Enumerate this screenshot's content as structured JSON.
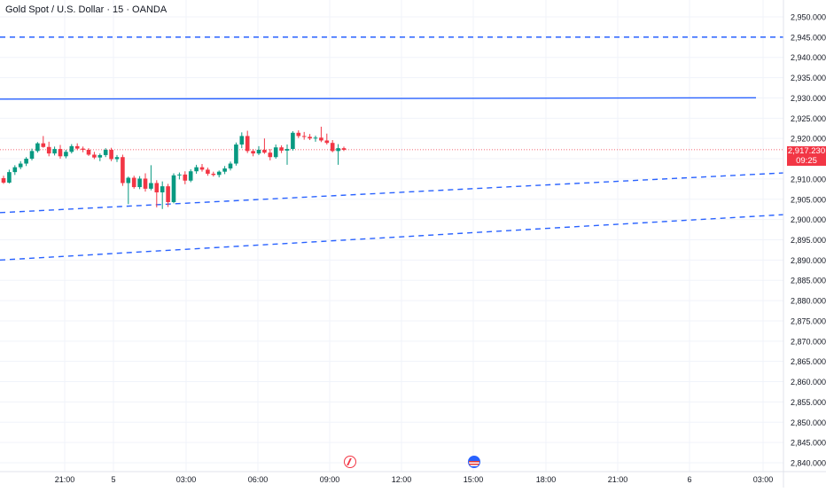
{
  "header": {
    "title": "Gold Spot / U.S. Dollar · 15 · OANDA"
  },
  "price_badge": {
    "price": "2,917.230",
    "countdown": "09:25",
    "color": "#f23645"
  },
  "events": [
    {
      "icon": "flash-icon",
      "x_label": "10:00"
    },
    {
      "icon": "us-flag-icon",
      "x_label": "15:00"
    }
  ],
  "colors": {
    "up": "#089981",
    "down": "#f23645",
    "line": "#2962ff",
    "grid": "#f0f3fa",
    "axis_text": "#131722"
  },
  "chart_data": {
    "type": "candlestick",
    "title": "Gold Spot / U.S. Dollar · 15 · OANDA",
    "x_tick_labels": [
      "21:00",
      "5",
      "03:00",
      "06:00",
      "09:00",
      "12:00",
      "15:00",
      "18:00",
      "21:00",
      "6",
      "03:00"
    ],
    "y_tick_labels": [
      "2,950.000",
      "2,945.000",
      "2,940.000",
      "2,935.000",
      "2,930.000",
      "2,925.000",
      "2,920.000",
      "2,915.000",
      "2,910.000",
      "2,905.000",
      "2,900.000",
      "2,895.000",
      "2,890.000",
      "2,885.000",
      "2,880.000",
      "2,875.000",
      "2,870.000",
      "2,865.000",
      "2,860.000",
      "2,855.000",
      "2,850.000",
      "2,845.000",
      "2,840.000"
    ],
    "ylim": [
      2838,
      2952
    ],
    "last_price": 2917.23,
    "candles_ohlc": [
      [
        2910.2,
        2910.8,
        2908.8,
        2909.1
      ],
      [
        2909.1,
        2912.3,
        2908.9,
        2911.7
      ],
      [
        2911.7,
        2913.4,
        2911.0,
        2912.9
      ],
      [
        2912.9,
        2914.4,
        2912.4,
        2913.8
      ],
      [
        2913.8,
        2915.4,
        2913.2,
        2915.0
      ],
      [
        2915.0,
        2917.5,
        2914.6,
        2916.9
      ],
      [
        2916.9,
        2919.1,
        2916.5,
        2918.8
      ],
      [
        2918.8,
        2920.6,
        2917.7,
        2917.9
      ],
      [
        2917.9,
        2919.2,
        2915.6,
        2916.3
      ],
      [
        2916.3,
        2918.0,
        2915.8,
        2917.4
      ],
      [
        2917.4,
        2918.4,
        2915.0,
        2915.6
      ],
      [
        2915.6,
        2917.2,
        2915.1,
        2916.7
      ],
      [
        2916.7,
        2918.6,
        2916.3,
        2918.1
      ],
      [
        2918.1,
        2918.8,
        2917.1,
        2917.5
      ],
      [
        2917.5,
        2918.0,
        2916.6,
        2917.2
      ],
      [
        2917.2,
        2917.6,
        2915.7,
        2916.0
      ],
      [
        2916.0,
        2916.7,
        2914.9,
        2915.3
      ],
      [
        2915.3,
        2916.3,
        2914.4,
        2915.9
      ],
      [
        2915.9,
        2917.6,
        2915.4,
        2917.2
      ],
      [
        2917.2,
        2917.7,
        2914.4,
        2914.9
      ],
      [
        2914.9,
        2915.9,
        2914.2,
        2915.4
      ],
      [
        2915.4,
        2916.0,
        2908.3,
        2909.0
      ],
      [
        2909.0,
        2910.6,
        2903.8,
        2910.3
      ],
      [
        2910.3,
        2910.8,
        2907.6,
        2908.0
      ],
      [
        2908.0,
        2910.7,
        2907.5,
        2910.1
      ],
      [
        2910.1,
        2911.4,
        2906.9,
        2907.6
      ],
      [
        2907.6,
        2913.4,
        2907.2,
        2909.0
      ],
      [
        2909.0,
        2909.7,
        2903.0,
        2906.7
      ],
      [
        2906.7,
        2909.4,
        2902.6,
        2908.2
      ],
      [
        2908.2,
        2908.8,
        2903.1,
        2904.3
      ],
      [
        2904.3,
        2911.4,
        2904.0,
        2910.9
      ],
      [
        2910.9,
        2911.6,
        2909.9,
        2911.1
      ],
      [
        2911.1,
        2911.9,
        2908.7,
        2909.6
      ],
      [
        2909.6,
        2912.4,
        2909.2,
        2911.9
      ],
      [
        2911.9,
        2913.5,
        2911.3,
        2912.9
      ],
      [
        2912.9,
        2913.7,
        2911.8,
        2912.3
      ],
      [
        2912.3,
        2912.8,
        2910.8,
        2911.3
      ],
      [
        2911.3,
        2911.8,
        2910.6,
        2911.0
      ],
      [
        2911.0,
        2912.1,
        2910.4,
        2911.8
      ],
      [
        2911.8,
        2913.2,
        2911.2,
        2912.6
      ],
      [
        2912.6,
        2914.3,
        2912.1,
        2913.8
      ],
      [
        2913.8,
        2919.0,
        2913.3,
        2918.5
      ],
      [
        2918.5,
        2921.5,
        2917.6,
        2920.6
      ],
      [
        2920.6,
        2921.9,
        2916.4,
        2916.9
      ],
      [
        2916.9,
        2917.4,
        2915.6,
        2916.3
      ],
      [
        2916.3,
        2918.1,
        2915.9,
        2917.2
      ],
      [
        2917.2,
        2920.0,
        2916.2,
        2916.5
      ],
      [
        2916.5,
        2917.4,
        2914.6,
        2915.4
      ],
      [
        2915.4,
        2918.5,
        2915.0,
        2917.8
      ],
      [
        2917.8,
        2918.3,
        2916.4,
        2917.0
      ],
      [
        2917.0,
        2918.5,
        2913.5,
        2917.4
      ],
      [
        2917.4,
        2921.8,
        2917.0,
        2921.4
      ],
      [
        2921.4,
        2922.0,
        2920.1,
        2920.6
      ],
      [
        2920.6,
        2921.6,
        2919.7,
        2920.4
      ],
      [
        2920.4,
        2921.1,
        2919.6,
        2920.0
      ],
      [
        2920.0,
        2920.7,
        2919.2,
        2920.2
      ],
      [
        2920.2,
        2922.9,
        2919.1,
        2919.5
      ],
      [
        2919.5,
        2921.2,
        2918.5,
        2918.9
      ],
      [
        2918.9,
        2919.6,
        2916.6,
        2916.9
      ],
      [
        2916.9,
        2918.6,
        2913.5,
        2917.6
      ],
      [
        2917.6,
        2918.0,
        2916.9,
        2917.2
      ]
    ],
    "horizontal_lines": [
      {
        "price": 2945.0,
        "style": "dashed"
      },
      {
        "price": 2929.7,
        "style": "solid",
        "end_label": "03:00"
      }
    ],
    "trend_lines": [
      {
        "from": [
          "left-edge",
          2901.7
        ],
        "to": [
          "right-edge",
          2911.5
        ],
        "style": "dashed"
      },
      {
        "from": [
          "left-edge",
          2890.0
        ],
        "to": [
          "right-edge",
          2901.2
        ],
        "style": "dashed"
      }
    ],
    "grid": true,
    "legend": "none"
  }
}
